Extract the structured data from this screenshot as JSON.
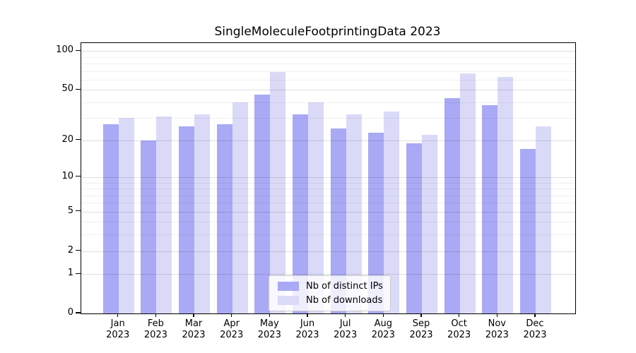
{
  "chart_data": {
    "type": "bar",
    "title": "SingleMoleculeFootprintingData 2023",
    "categories_month": [
      "Jan",
      "Feb",
      "Mar",
      "Apr",
      "May",
      "Jun",
      "Jul",
      "Aug",
      "Sep",
      "Oct",
      "Nov",
      "Dec"
    ],
    "categories_year": "2023",
    "series": [
      {
        "name": "Nb of distinct IPs",
        "color": "#a9a9f5",
        "values": [
          27,
          20,
          26,
          27,
          46,
          32,
          25,
          23,
          19,
          43,
          38,
          17
        ]
      },
      {
        "name": "Nb of downloads",
        "color": "#dadaf8",
        "values": [
          30,
          31,
          32,
          40,
          69,
          40,
          32,
          34,
          22,
          67,
          63,
          26
        ]
      }
    ],
    "xlabel": "",
    "ylabel": "",
    "y_axis": {
      "scale": "log1p",
      "tick_labels": [
        0,
        1,
        2,
        5,
        10,
        20,
        50,
        100
      ],
      "minor_gridlines": [
        3,
        4,
        6,
        7,
        8,
        9,
        30,
        40,
        60,
        70,
        80,
        90
      ],
      "ylim": [
        0,
        115
      ]
    },
    "grid": "on",
    "legend_position": "bottom-center",
    "background_color": "#ffffff",
    "axis_color": "#000000"
  }
}
